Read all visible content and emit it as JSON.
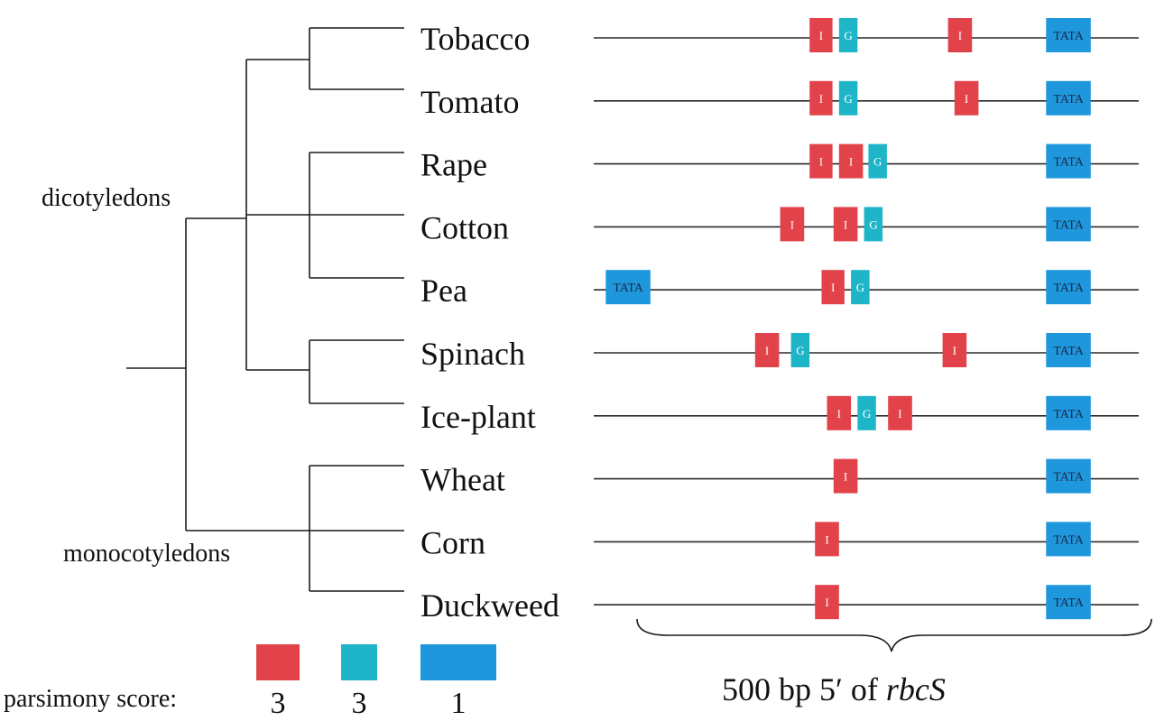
{
  "groups": {
    "dicots": "dicotyledons",
    "monocots": "monocotyledons"
  },
  "colors": {
    "I": "#e2434a",
    "G": "#1fb5c9",
    "TATA": "#1f97dd"
  },
  "sequence": {
    "start_bp": 0,
    "end_bp": 500
  },
  "rows": [
    {
      "species": "Tobacco",
      "elements": [
        {
          "type": "I",
          "label": "I",
          "start": 198,
          "end": 219
        },
        {
          "type": "G",
          "label": "G",
          "start": 225,
          "end": 242
        },
        {
          "type": "I",
          "label": "I",
          "start": 325,
          "end": 347
        },
        {
          "type": "TATA",
          "label": "TATA",
          "start": 415,
          "end": 456
        }
      ]
    },
    {
      "species": "Tomato",
      "elements": [
        {
          "type": "I",
          "label": "I",
          "start": 198,
          "end": 219
        },
        {
          "type": "G",
          "label": "G",
          "start": 225,
          "end": 242
        },
        {
          "type": "I",
          "label": "I",
          "start": 331,
          "end": 353
        },
        {
          "type": "TATA",
          "label": "TATA",
          "start": 415,
          "end": 456
        }
      ]
    },
    {
      "species": "Rape",
      "elements": [
        {
          "type": "I",
          "label": "I",
          "start": 198,
          "end": 219
        },
        {
          "type": "I",
          "label": "I",
          "start": 225,
          "end": 247
        },
        {
          "type": "G",
          "label": "G",
          "start": 252,
          "end": 269
        },
        {
          "type": "TATA",
          "label": "TATA",
          "start": 415,
          "end": 456
        }
      ]
    },
    {
      "species": "Cotton",
      "elements": [
        {
          "type": "I",
          "label": "I",
          "start": 171,
          "end": 193
        },
        {
          "type": "I",
          "label": "I",
          "start": 220,
          "end": 242
        },
        {
          "type": "G",
          "label": "G",
          "start": 248,
          "end": 265
        },
        {
          "type": "TATA",
          "label": "TATA",
          "start": 415,
          "end": 456
        }
      ]
    },
    {
      "species": "Pea",
      "elements": [
        {
          "type": "TATA",
          "label": "TATA",
          "start": 11,
          "end": 52
        },
        {
          "type": "I",
          "label": "I",
          "start": 209,
          "end": 230
        },
        {
          "type": "G",
          "label": "G",
          "start": 236,
          "end": 253
        },
        {
          "type": "TATA",
          "label": "TATA",
          "start": 415,
          "end": 456
        }
      ]
    },
    {
      "species": "Spinach",
      "elements": [
        {
          "type": "I",
          "label": "I",
          "start": 148,
          "end": 170
        },
        {
          "type": "G",
          "label": "G",
          "start": 181,
          "end": 198
        },
        {
          "type": "I",
          "label": "I",
          "start": 320,
          "end": 342
        },
        {
          "type": "TATA",
          "label": "TATA",
          "start": 415,
          "end": 456
        }
      ]
    },
    {
      "species": "Ice-plant",
      "elements": [
        {
          "type": "I",
          "label": "I",
          "start": 214,
          "end": 236
        },
        {
          "type": "G",
          "label": "G",
          "start": 242,
          "end": 259
        },
        {
          "type": "I",
          "label": "I",
          "start": 270,
          "end": 292
        },
        {
          "type": "TATA",
          "label": "TATA",
          "start": 415,
          "end": 456
        }
      ]
    },
    {
      "species": "Wheat",
      "elements": [
        {
          "type": "I",
          "label": "I",
          "start": 220,
          "end": 242
        },
        {
          "type": "TATA",
          "label": "TATA",
          "start": 415,
          "end": 456
        }
      ]
    },
    {
      "species": "Corn",
      "elements": [
        {
          "type": "I",
          "label": "I",
          "start": 203,
          "end": 225
        },
        {
          "type": "TATA",
          "label": "TATA",
          "start": 415,
          "end": 456
        }
      ]
    },
    {
      "species": "Duckweed",
      "elements": [
        {
          "type": "I",
          "label": "I",
          "start": 203,
          "end": 225
        },
        {
          "type": "TATA",
          "label": "TATA",
          "start": 415,
          "end": 456
        }
      ]
    }
  ],
  "legend": {
    "label": "parsimony score:",
    "items": [
      {
        "type": "I",
        "score": "3"
      },
      {
        "type": "G",
        "score": "3"
      },
      {
        "type": "TATA",
        "score": "1"
      }
    ]
  },
  "scale": {
    "prefix": "500 bp 5′ of ",
    "gene": "rbcS"
  }
}
